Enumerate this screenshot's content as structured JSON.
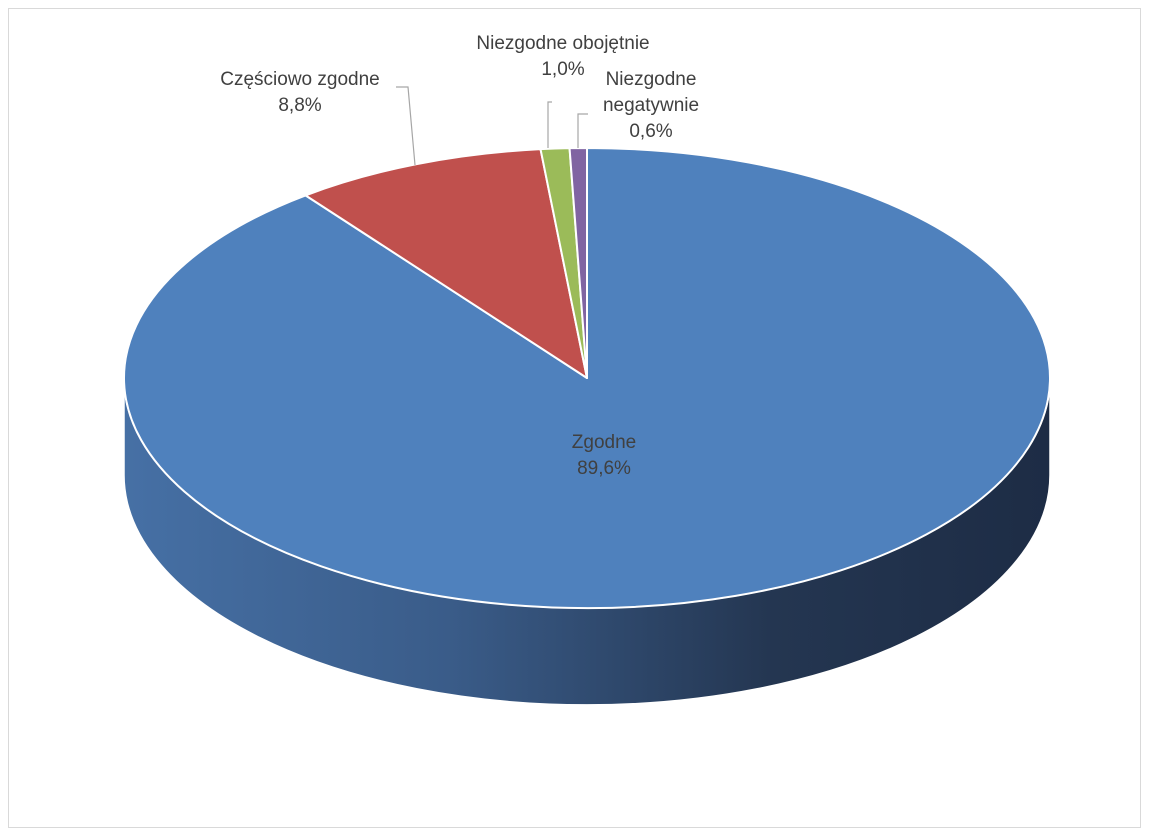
{
  "chart_data": {
    "type": "pie",
    "style": "3d",
    "title": "",
    "start_angle_deg": 0,
    "direction": "clockwise",
    "slices": [
      {
        "name": "Zgodne",
        "value": 89.6,
        "label": "89,6%",
        "color": "#4f81bd"
      },
      {
        "name": "Częściowo zgodne",
        "value": 8.8,
        "label": "8,8%",
        "color": "#c0504d"
      },
      {
        "name": "Niezgodne obojętnie",
        "value": 1.0,
        "label": "1,0%",
        "color": "#9bbb59"
      },
      {
        "name": "Niezgodne negatywnie",
        "value": 0.6,
        "label": "0,6%",
        "color": "#8064a2"
      }
    ]
  }
}
